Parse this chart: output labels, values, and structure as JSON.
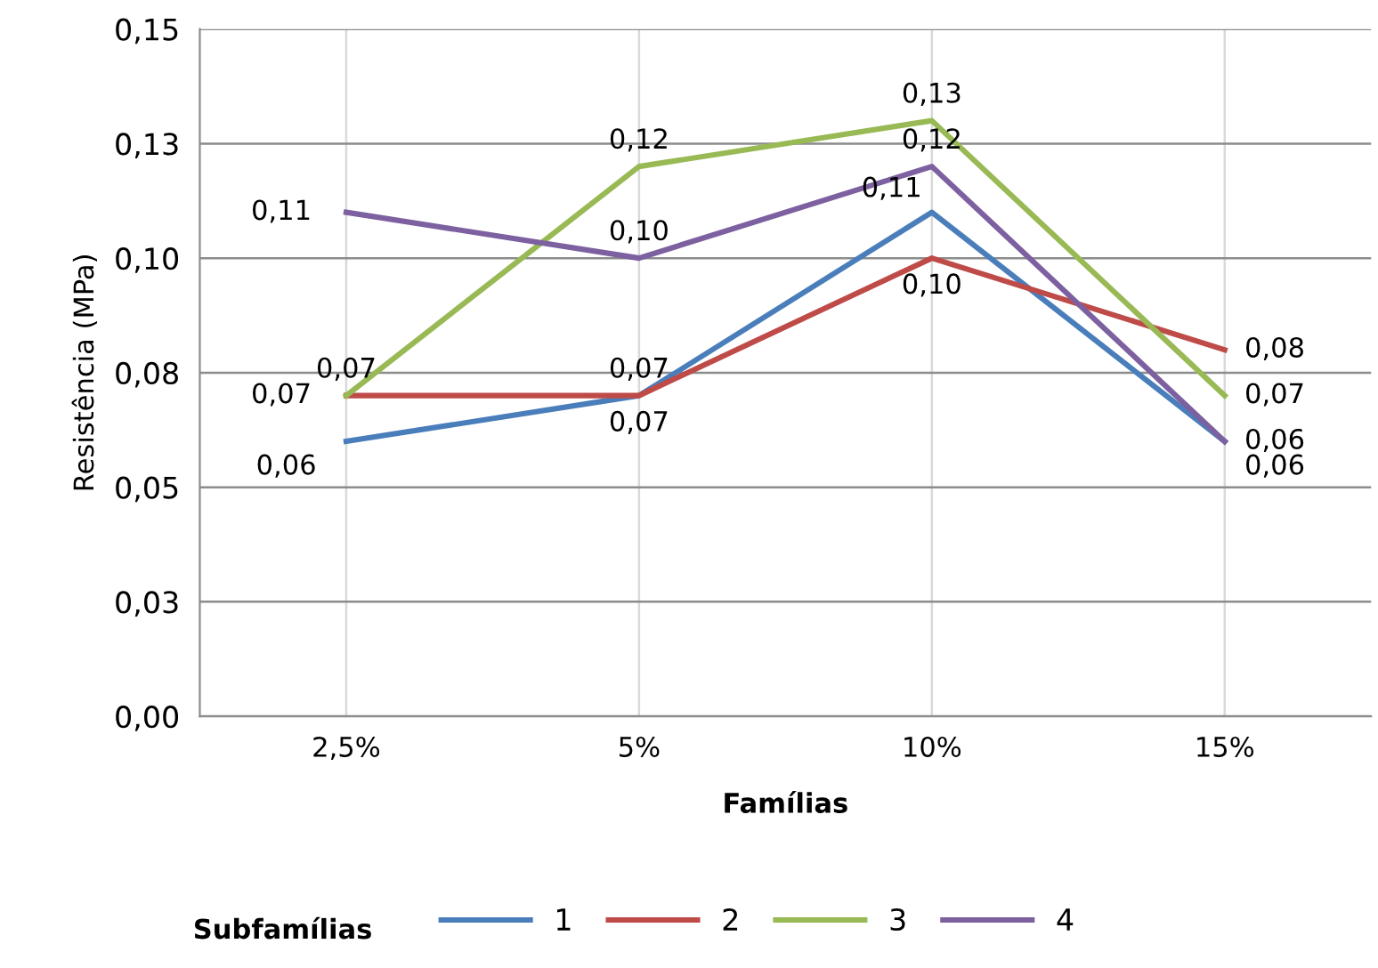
{
  "chart_data": {
    "type": "line",
    "xlabel": "Famílias",
    "ylabel": "Resistência (MPa)",
    "legend_title": "Subfamílias",
    "categories": [
      "2,5%",
      "5%",
      "10%",
      "15%"
    ],
    "series": [
      {
        "name": "1",
        "color": "#4a7ebb",
        "values": [
          0.06,
          0.07,
          0.11,
          0.06
        ],
        "value_labels": [
          "0,06",
          "0,07",
          "0,11",
          "0,06"
        ]
      },
      {
        "name": "2",
        "color": "#be4b48",
        "values": [
          0.07,
          0.07,
          0.1,
          0.08
        ],
        "value_labels": [
          "0,07",
          "0,07",
          "0,10",
          "0,08"
        ]
      },
      {
        "name": "3",
        "color": "#98b954",
        "values": [
          0.07,
          0.12,
          0.13,
          0.07
        ],
        "value_labels": [
          "0,07",
          "0,12",
          "0,13",
          "0,07"
        ]
      },
      {
        "name": "4",
        "color": "#7d60a0",
        "values": [
          0.11,
          0.1,
          0.12,
          0.06
        ],
        "value_labels": [
          "0,11",
          "0,10",
          "0,12",
          "0,06"
        ]
      }
    ],
    "ylim": [
      0,
      0.15
    ],
    "yticks": [
      {
        "value": 0,
        "label": "0,00"
      },
      {
        "value": 0.025,
        "label": "0,03"
      },
      {
        "value": 0.05,
        "label": "0,05"
      },
      {
        "value": 0.075,
        "label": "0,08"
      },
      {
        "value": 0.1,
        "label": "0,10"
      },
      {
        "value": 0.125,
        "label": "0,13"
      },
      {
        "value": 0.15,
        "label": "0,15"
      }
    ],
    "grid": true,
    "legend": "bottom",
    "marker": "none",
    "line_style": "solid"
  }
}
